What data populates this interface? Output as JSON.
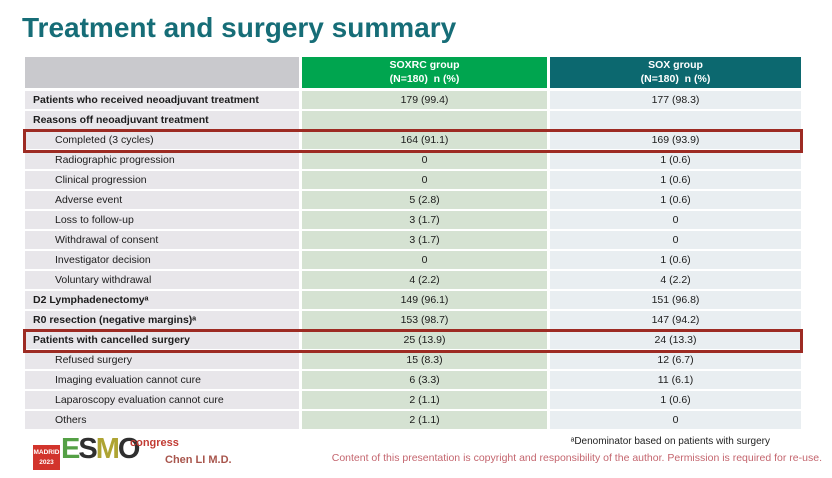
{
  "slide": {
    "title": "Treatment and surgery summary",
    "presenter": "Chen LI M.D.",
    "footnote": "ᵃDenominator based on patients with surgery",
    "copyright": "Content of this presentation is copyright and responsibility of the author. Permission is required for re-use."
  },
  "logo": {
    "venue_line1": "MADRID",
    "venue_line2": "2023",
    "letters": [
      "E",
      "S",
      "M",
      "O"
    ],
    "congress": "congress"
  },
  "colors": {
    "title_teal": "#166d77",
    "soxrc_header_green": "#00a54f",
    "sox_header_teal": "#0c686f",
    "highlight_box_red": "#9d2b23",
    "soxrc_cell_green": "#d5e2d2",
    "sox_cell_blue": "#e9eef1"
  },
  "table": {
    "columns": [
      {
        "name": "",
        "sub": ""
      },
      {
        "name": "SOXRC group",
        "sub": "(N=180)  n (%)"
      },
      {
        "name": "SOX group",
        "sub": "(N=180)  n (%)"
      }
    ],
    "rows": [
      {
        "label": "Patients who received neoadjuvant treatment",
        "bold": true,
        "indent": false,
        "highlight": false,
        "soxrc": "179 (99.4)",
        "sox": "177 (98.3)"
      },
      {
        "label": "Reasons off neoadjuvant treatment",
        "bold": true,
        "indent": false,
        "highlight": false,
        "soxrc": "",
        "sox": ""
      },
      {
        "label": "Completed (3 cycles)",
        "bold": false,
        "indent": true,
        "highlight": true,
        "soxrc": "164 (91.1)",
        "sox": "169 (93.9)"
      },
      {
        "label": "Radiographic progression",
        "bold": false,
        "indent": true,
        "highlight": false,
        "soxrc": "0",
        "sox": "1 (0.6)"
      },
      {
        "label": "Clinical progression",
        "bold": false,
        "indent": true,
        "highlight": false,
        "soxrc": "0",
        "sox": "1 (0.6)"
      },
      {
        "label": "Adverse event",
        "bold": false,
        "indent": true,
        "highlight": false,
        "soxrc": "5 (2.8)",
        "sox": "1 (0.6)"
      },
      {
        "label": "Loss to follow-up",
        "bold": false,
        "indent": true,
        "highlight": false,
        "soxrc": "3 (1.7)",
        "sox": "0"
      },
      {
        "label": "Withdrawal of consent",
        "bold": false,
        "indent": true,
        "highlight": false,
        "soxrc": "3 (1.7)",
        "sox": "0"
      },
      {
        "label": "Investigator decision",
        "bold": false,
        "indent": true,
        "highlight": false,
        "soxrc": "0",
        "sox": "1 (0.6)"
      },
      {
        "label": "Voluntary withdrawal",
        "bold": false,
        "indent": true,
        "highlight": false,
        "soxrc": "4 (2.2)",
        "sox": "4 (2.2)"
      },
      {
        "label": "D2 Lymphadenectomyᵃ",
        "bold": true,
        "indent": false,
        "highlight": false,
        "soxrc": "149 (96.1)",
        "sox": "151 (96.8)"
      },
      {
        "label": "R0 resection (negative margins)ᵃ",
        "bold": true,
        "indent": false,
        "highlight": false,
        "soxrc": "153 (98.7)",
        "sox": "147 (94.2)"
      },
      {
        "label": "Patients with cancelled surgery",
        "bold": true,
        "indent": false,
        "highlight": true,
        "soxrc": "25 (13.9)",
        "sox": "24 (13.3)"
      },
      {
        "label": "Refused surgery",
        "bold": false,
        "indent": true,
        "highlight": false,
        "soxrc": "15 (8.3)",
        "sox": "12 (6.7)"
      },
      {
        "label": "Imaging evaluation cannot cure",
        "bold": false,
        "indent": true,
        "highlight": false,
        "soxrc": "6 (3.3)",
        "sox": "11 (6.1)"
      },
      {
        "label": "Laparoscopy evaluation cannot cure",
        "bold": false,
        "indent": true,
        "highlight": false,
        "soxrc": "2 (1.1)",
        "sox": "1 (0.6)"
      },
      {
        "label": "Others",
        "bold": false,
        "indent": true,
        "highlight": false,
        "soxrc": "2 (1.1)",
        "sox": "0"
      }
    ]
  }
}
